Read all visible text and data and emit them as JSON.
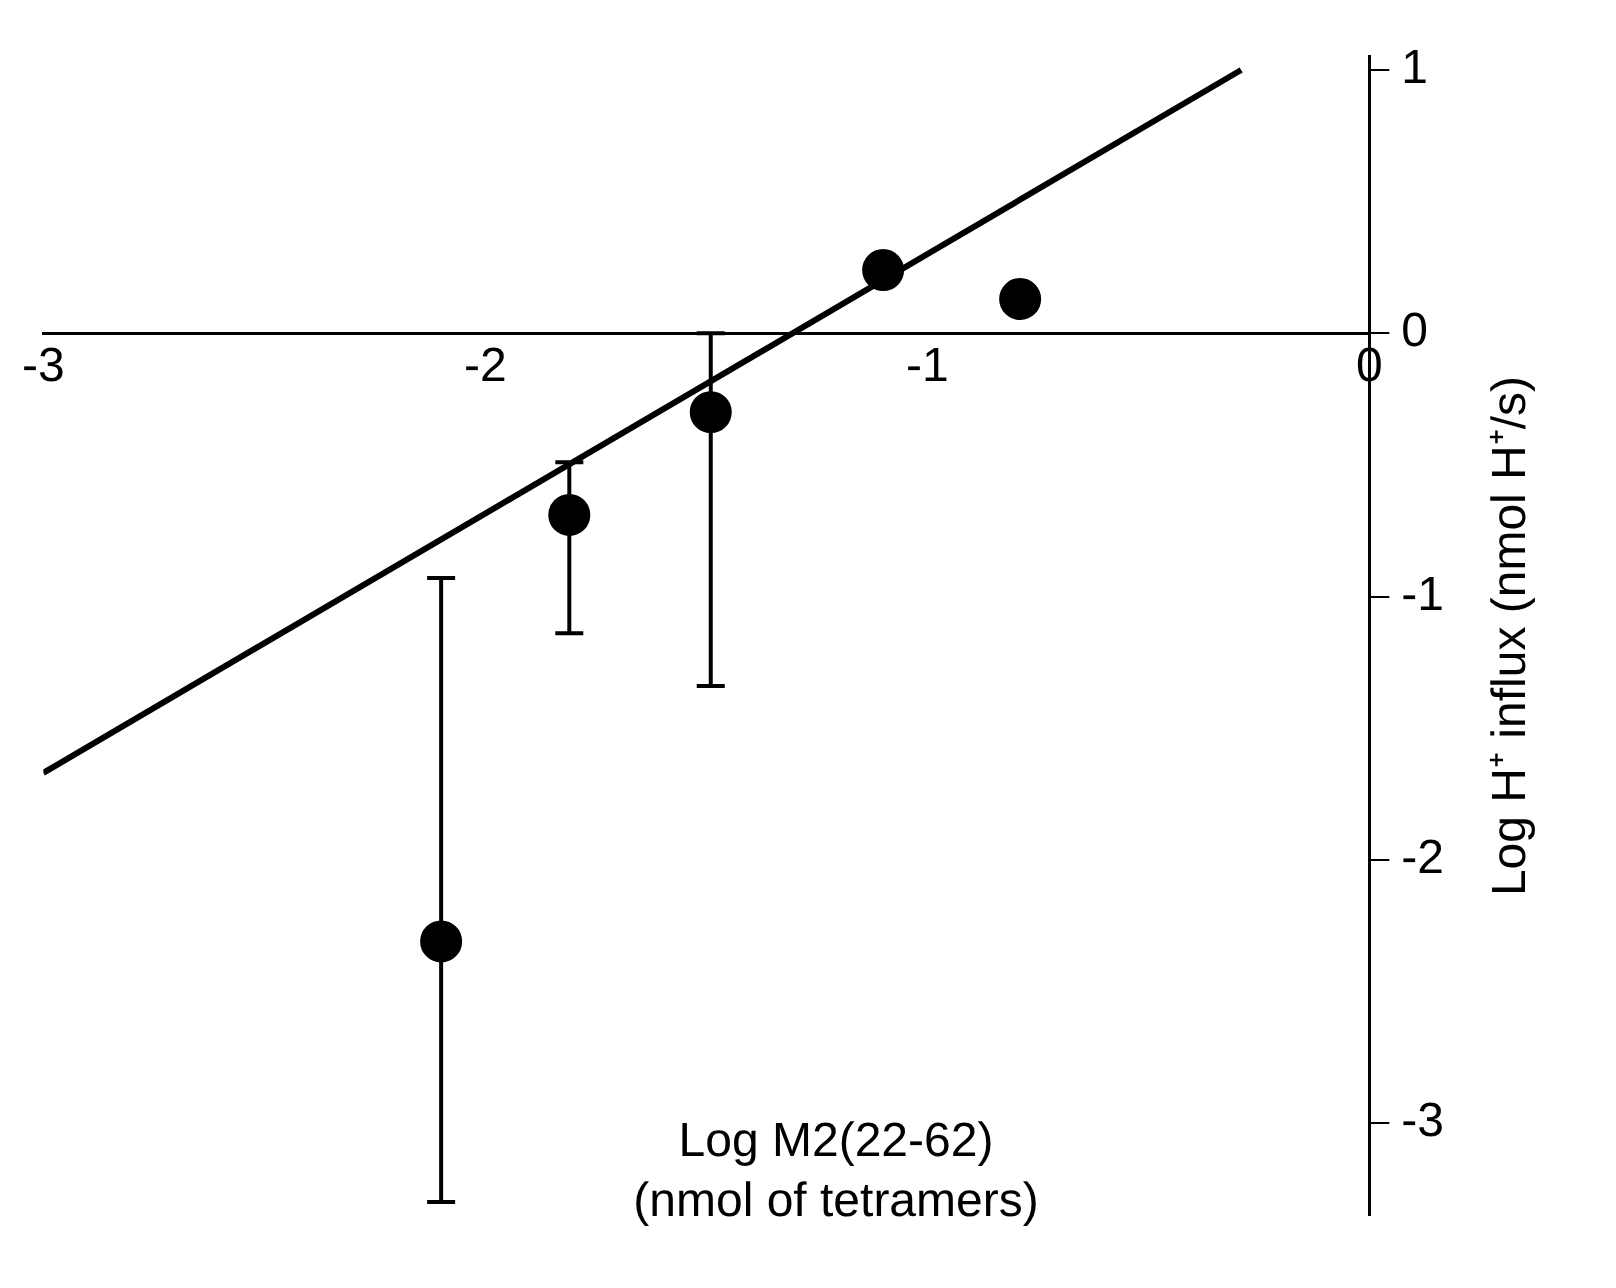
{
  "chart_data": {
    "type": "scatter",
    "xlabel": "Log M2(22-62)\n(nmol of tetramers)",
    "ylabel": "Log H⁺ influx (nmol H⁺/s)",
    "xlim": [
      -3,
      0
    ],
    "xticks": [
      -3,
      -2,
      -1,
      0
    ],
    "ylim": [
      -3.35,
      1.05
    ],
    "yticks": [
      1,
      0,
      -1,
      -2,
      -3
    ],
    "grid": false,
    "legend": false,
    "series": [
      {
        "color": "#000000",
        "marker": "circle",
        "x": [
          -2.1,
          -1.81,
          -1.49,
          -1.1,
          -0.79
        ],
        "values": [
          -2.31,
          -0.69,
          -0.3,
          0.24,
          0.13
        ],
        "errors": [
          [
            -3.3,
            -0.93
          ],
          [
            -1.14,
            -0.49
          ],
          [
            -1.34,
            0
          ],
          null,
          null
        ]
      },
      {
        "type": "line",
        "color": "#000000",
        "x": [
          -3,
          -0.29
        ],
        "values": [
          -1.67,
          1
        ]
      }
    ]
  }
}
